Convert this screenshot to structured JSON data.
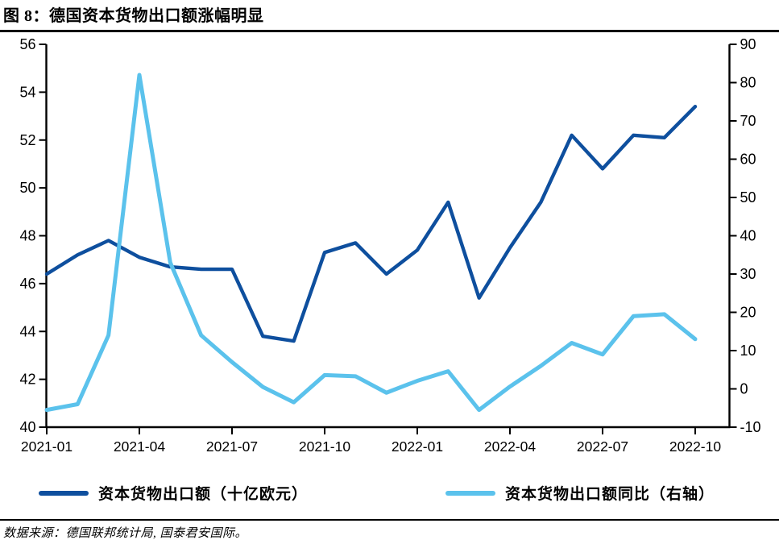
{
  "header": {
    "title": "图 8：德国资本货物出口额涨幅明显"
  },
  "footer": {
    "source": "数据来源：德国联邦统计局, 国泰君安国际。"
  },
  "colors": {
    "dark_blue": "#0E4F9E",
    "light_blue": "#5BC2EC",
    "axis": "#000000"
  },
  "legend": {
    "items": [
      {
        "label": "资本货物出口额（十亿欧元）",
        "color": "#0E4F9E"
      },
      {
        "label": "资本货物出口额同比（右轴）",
        "color": "#5BC2EC"
      }
    ]
  },
  "chart_data": {
    "type": "line",
    "title": "图 8：德国资本货物出口额涨幅明显",
    "xlabel": "",
    "ylabel": "",
    "grid": false,
    "legend_position": "bottom",
    "x": [
      "2021-01",
      "2021-02",
      "2021-03",
      "2021-04",
      "2021-05",
      "2021-06",
      "2021-07",
      "2021-08",
      "2021-09",
      "2021-10",
      "2021-11",
      "2021-12",
      "2022-01",
      "2022-02",
      "2022-03",
      "2022-04",
      "2022-05",
      "2022-06",
      "2022-07",
      "2022-08",
      "2022-09",
      "2022-10"
    ],
    "x_tick_labels": [
      "2021-01",
      "2021-04",
      "2021-07",
      "2021-10",
      "2022-01",
      "2022-04",
      "2022-07",
      "2022-10"
    ],
    "left_axis": {
      "min": 40,
      "max": 56,
      "step": 2,
      "ticks": [
        56,
        54,
        52,
        50,
        48,
        46,
        44,
        42,
        40
      ]
    },
    "right_axis": {
      "min": -10,
      "max": 90,
      "step": 10,
      "ticks": [
        90,
        80,
        70,
        60,
        50,
        40,
        30,
        20,
        10,
        0,
        -10
      ]
    },
    "series": [
      {
        "name": "资本货物出口额（十亿欧元）",
        "axis": "left",
        "color": "#0E4F9E",
        "values": [
          46.4,
          47.2,
          47.8,
          47.1,
          46.7,
          46.6,
          46.6,
          43.8,
          43.6,
          47.3,
          47.7,
          46.4,
          47.4,
          49.4,
          45.4,
          47.5,
          49.4,
          52.2,
          50.8,
          52.2,
          52.1,
          53.4
        ]
      },
      {
        "name": "资本货物出口额同比（右轴）",
        "axis": "right",
        "color": "#5BC2EC",
        "values": [
          -5.5,
          -4,
          14,
          82,
          33,
          14,
          7,
          0.5,
          -3.5,
          3.6,
          3.3,
          -1,
          2.1,
          4.6,
          -5.5,
          0.6,
          6,
          12,
          9,
          19,
          19.5,
          13
        ]
      }
    ]
  }
}
